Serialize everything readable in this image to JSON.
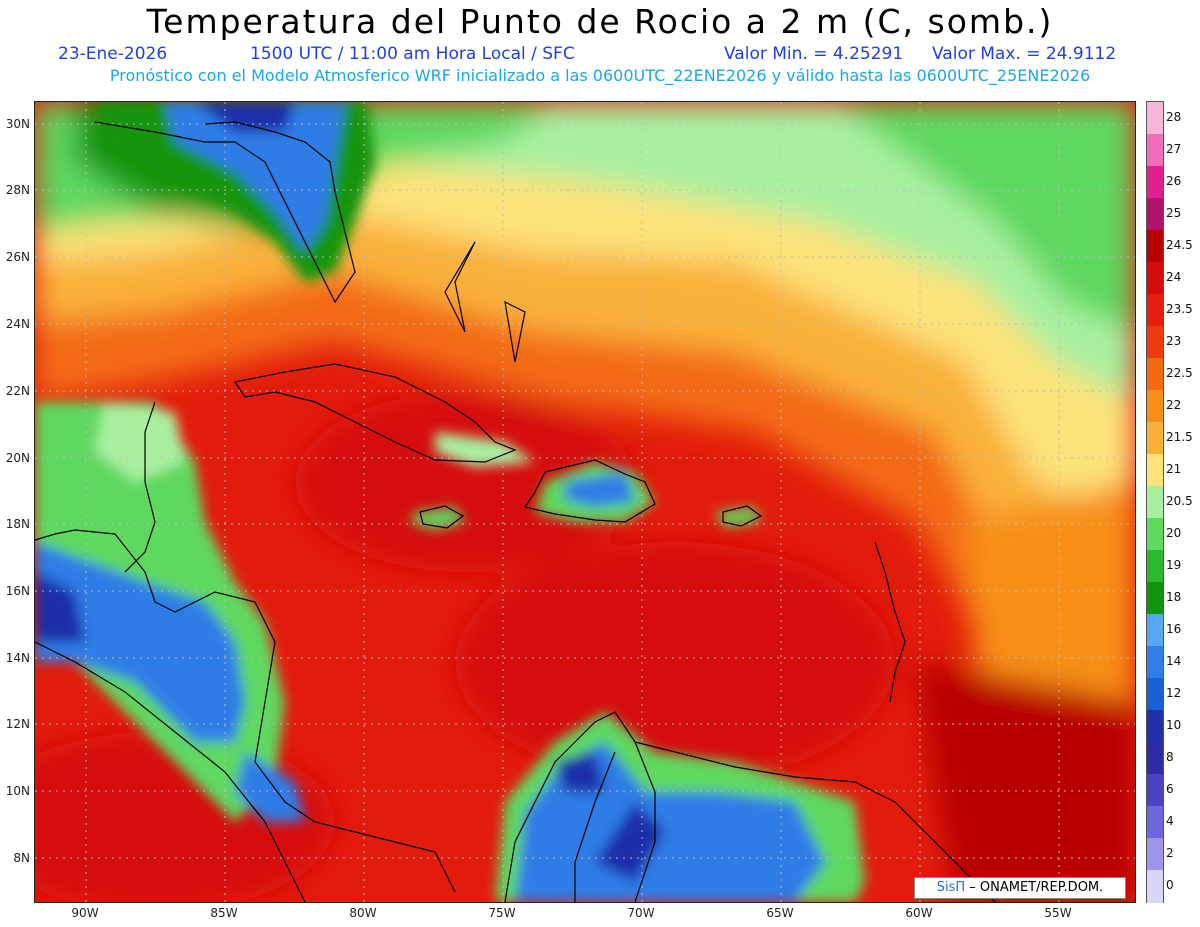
{
  "header": {
    "title": "Temperatura del Punto de Rocio a 2 m (C, somb.)",
    "date": "23-Ene-2026",
    "time": "1500 UTC / 11:00 am Hora Local / SFC",
    "valmin": "Valor Min. = 4.25291",
    "valmax": "Valor Max. = 24.9112",
    "model_line": "Pronóstico con el Modelo Atmosferico WRF inicializado a las 0600UTC_22ENE2026 y válido hasta las 0600UTC_25ENE2026"
  },
  "map": {
    "lat_ticks": [
      "30N",
      "28N",
      "26N",
      "24N",
      "22N",
      "20N",
      "18N",
      "16N",
      "14N",
      "12N",
      "10N",
      "8N"
    ],
    "lon_ticks": [
      "90W",
      "85W",
      "80W",
      "75W",
      "70W",
      "65W",
      "60W",
      "55W"
    ]
  },
  "colorbar": {
    "labels": [
      "28",
      "27",
      "26",
      "25",
      "24.5",
      "24",
      "23.5",
      "23",
      "22.5",
      "22",
      "21.5",
      "21",
      "20.5",
      "20",
      "19",
      "18",
      "16",
      "14",
      "12",
      "10",
      "8",
      "6",
      "4",
      "2",
      "0"
    ],
    "colors": [
      "#f7b8d8",
      "#f06fb8",
      "#e0208f",
      "#b3126a",
      "#b80000",
      "#d60a0a",
      "#e61e0e",
      "#f03a10",
      "#f36a12",
      "#f78f16",
      "#f9b13a",
      "#fce27a",
      "#a8f0a0",
      "#5fd860",
      "#2db834",
      "#13940f",
      "#57a8f2",
      "#2f7de6",
      "#1a5fd6",
      "#1e2fa8",
      "#2f2aa5",
      "#4a44c4",
      "#6e66dd",
      "#9b95ec",
      "#d8d6f7"
    ]
  },
  "credit": {
    "logo": "SisΠ",
    "text": " – ONAMET/REP.DOM."
  }
}
